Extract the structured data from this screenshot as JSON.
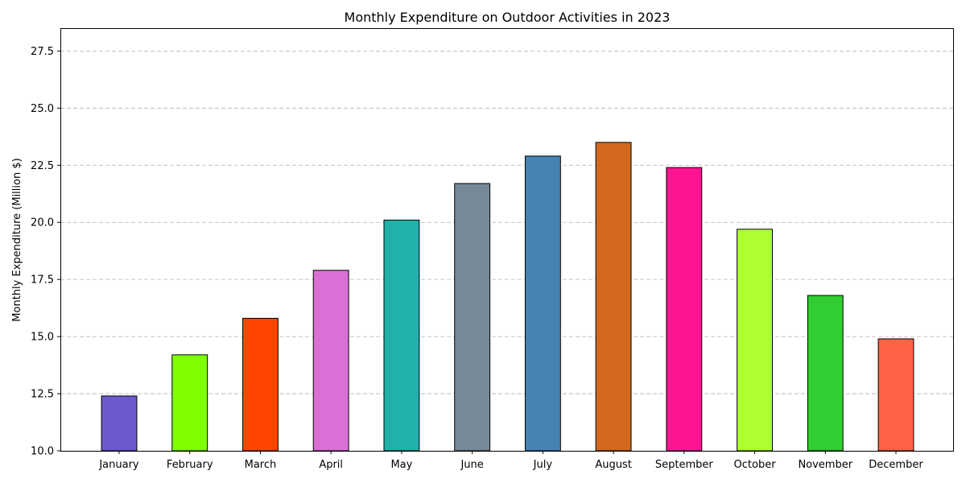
{
  "chart_data": {
    "type": "bar",
    "title": "Monthly Expenditure on Outdoor Activities in 2023",
    "xlabel": "",
    "ylabel": "Monthly Expenditure (Million $)",
    "categories": [
      "January",
      "February",
      "March",
      "April",
      "May",
      "June",
      "July",
      "August",
      "September",
      "October",
      "November",
      "December"
    ],
    "values": [
      12.4,
      14.2,
      15.8,
      17.9,
      20.1,
      21.7,
      22.9,
      23.5,
      22.4,
      19.7,
      16.8,
      14.9
    ],
    "colors": [
      "#6a5acd",
      "#7fff00",
      "#ff4500",
      "#da70d6",
      "#20b2aa",
      "#778899",
      "#4682b4",
      "#d2691e",
      "#ff1493",
      "#adff2f",
      "#32cd32",
      "#ff6347"
    ],
    "ylim": [
      10,
      28.5
    ],
    "yticks": [
      10.0,
      12.5,
      15.0,
      17.5,
      20.0,
      22.5,
      25.0,
      27.5
    ],
    "ytick_labels": [
      "10.0",
      "12.5",
      "15.0",
      "17.5",
      "20.0",
      "22.5",
      "25.0",
      "27.5"
    ],
    "grid": "y-dashed",
    "legend": "none"
  }
}
